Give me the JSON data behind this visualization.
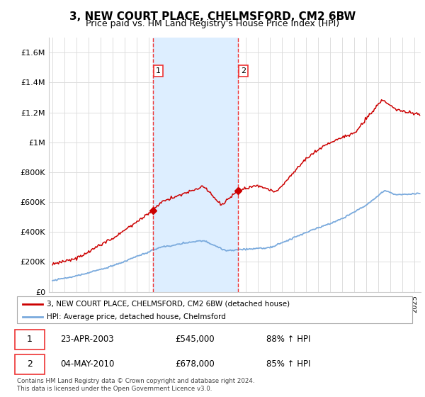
{
  "title": "3, NEW COURT PLACE, CHELMSFORD, CM2 6BW",
  "subtitle": "Price paid vs. HM Land Registry's House Price Index (HPI)",
  "title_fontsize": 11,
  "subtitle_fontsize": 9,
  "ylim": [
    0,
    1700000
  ],
  "yticks": [
    0,
    200000,
    400000,
    600000,
    800000,
    1000000,
    1200000,
    1400000,
    1600000
  ],
  "ytick_labels": [
    "£0",
    "£200K",
    "£400K",
    "£600K",
    "£800K",
    "£1M",
    "£1.2M",
    "£1.4M",
    "£1.6M"
  ],
  "legend_line1": "3, NEW COURT PLACE, CHELMSFORD, CM2 6BW (detached house)",
  "legend_line2": "HPI: Average price, detached house, Chelmsford",
  "sale1_date": 2003.31,
  "sale1_price": 545000,
  "sale1_label": "1",
  "sale1_text": "23-APR-2003",
  "sale1_amount": "£545,000",
  "sale1_hpi": "88% ↑ HPI",
  "sale2_date": 2010.34,
  "sale2_price": 678000,
  "sale2_label": "2",
  "sale2_text": "04-MAY-2010",
  "sale2_amount": "£678,000",
  "sale2_hpi": "85% ↑ HPI",
  "line1_color": "#cc0000",
  "line2_color": "#7aaadd",
  "shade_color": "#ddeeff",
  "vline_color": "#ee3333",
  "background_color": "#ffffff",
  "grid_color": "#dddddd",
  "footer_text": "Contains HM Land Registry data © Crown copyright and database right 2024.\nThis data is licensed under the Open Government Licence v3.0.",
  "xstart": 1995,
  "xend": 2026
}
